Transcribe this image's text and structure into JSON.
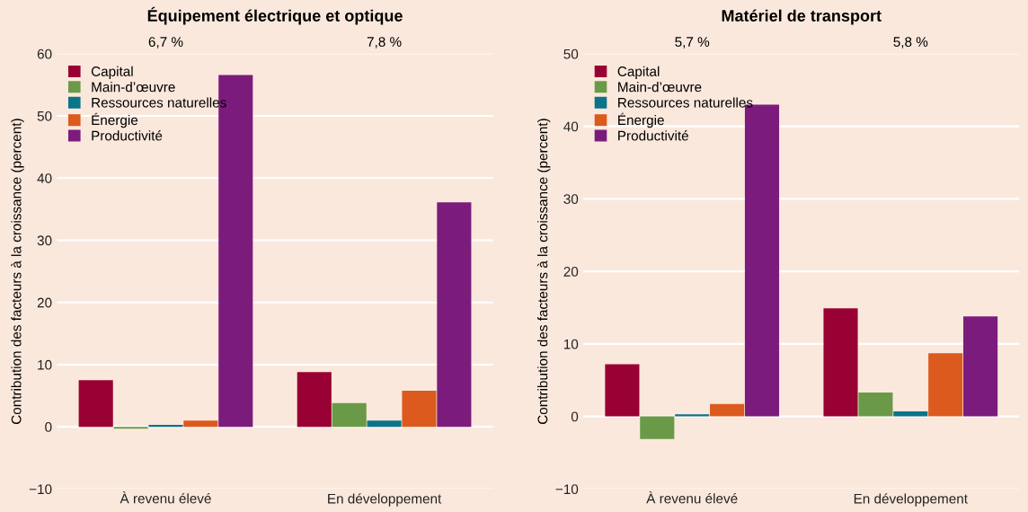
{
  "chart_data": [
    {
      "type": "bar",
      "title": "Équipement électrique et optique",
      "ylabel": "Contribution des facteurs à la croissance (percent)",
      "categories": [
        "À revenu élevé",
        "En développement"
      ],
      "series": [
        {
          "name": "Capital",
          "color": "#990033",
          "values": [
            7.5,
            8.8
          ]
        },
        {
          "name": "Main-d’œuvre",
          "color": "#6a9a48",
          "values": [
            -0.3,
            3.8
          ]
        },
        {
          "name": "Ressources naturelles",
          "color": "#0a7488",
          "values": [
            0.3,
            1.0
          ]
        },
        {
          "name": "Énergie",
          "color": "#dc5a1e",
          "values": [
            1.0,
            5.8
          ]
        },
        {
          "name": "Productivité",
          "color": "#7b1c7d",
          "values": [
            56.6,
            36.1
          ]
        }
      ],
      "ylim": [
        -10,
        60
      ],
      "yticks": [
        {
          "value": -10,
          "label": "−10"
        },
        0,
        10,
        20,
        30,
        40,
        50,
        60
      ],
      "grid": "y",
      "legend": "top left",
      "annotations": [
        "6,7 %",
        "7,8 %"
      ]
    },
    {
      "type": "bar",
      "title": "Matériel de transport",
      "ylabel": "Contribution des facteurs à la croissance (percent)",
      "categories": [
        "À revenu élevé",
        "En développement"
      ],
      "series": [
        {
          "name": "Capital",
          "color": "#990033",
          "values": [
            7.2,
            14.9
          ]
        },
        {
          "name": "Main-d’œuvre",
          "color": "#6a9a48",
          "values": [
            -3.1,
            3.3
          ]
        },
        {
          "name": "Ressources naturelles",
          "color": "#0a7488",
          "values": [
            0.3,
            0.7
          ]
        },
        {
          "name": "Énergie",
          "color": "#dc5a1e",
          "values": [
            1.7,
            8.7
          ]
        },
        {
          "name": "Productivité",
          "color": "#7b1c7d",
          "values": [
            43.0,
            13.8
          ]
        }
      ],
      "ylim": [
        -10,
        50
      ],
      "yticks": [
        {
          "value": -10,
          "label": "−10"
        },
        0,
        10,
        20,
        30,
        40,
        50
      ],
      "grid": "y",
      "legend": "top left",
      "annotations": [
        "5,7 %",
        "5,8 %"
      ]
    }
  ]
}
